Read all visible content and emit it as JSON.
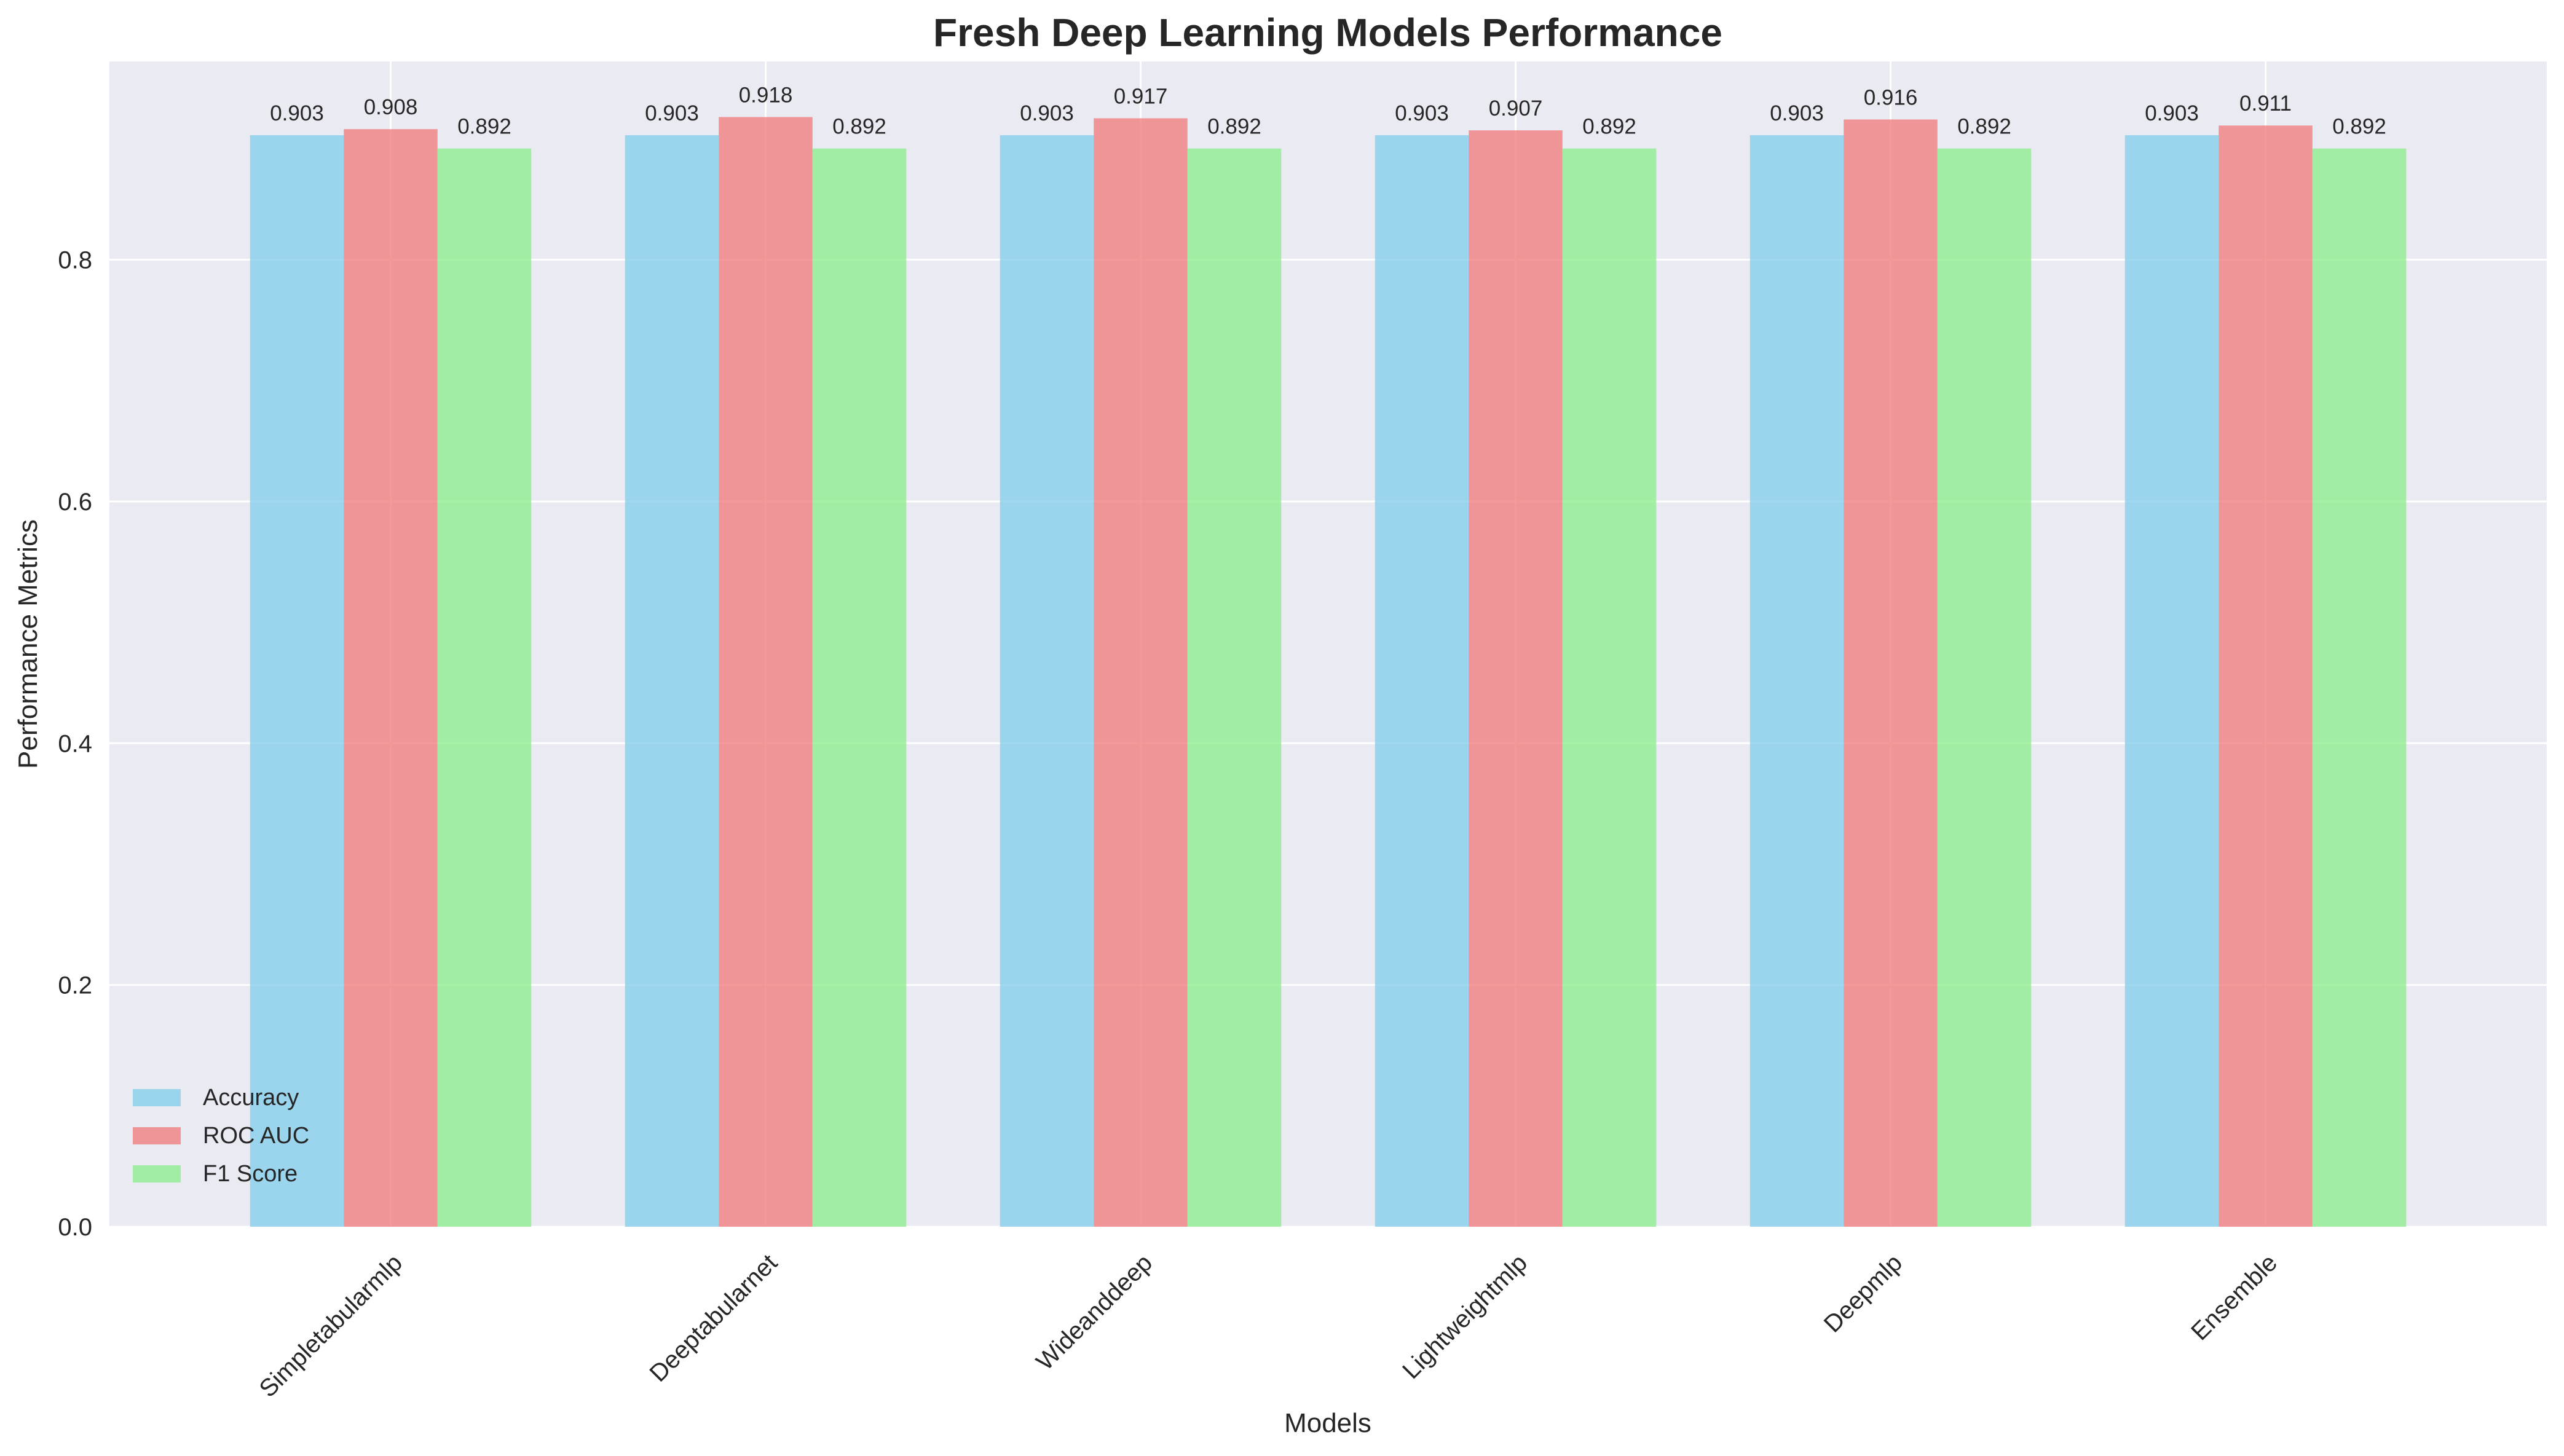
{
  "chart_data": {
    "type": "bar",
    "title": "Fresh Deep Learning Models Performance",
    "xlabel": "Models",
    "ylabel": "Performance Metrics",
    "categories": [
      "Simpletabularmlp",
      "Deeptabularnet",
      "Wideanddeep",
      "Lightweightmlp",
      "Deepmlp",
      "Ensemble"
    ],
    "series": [
      {
        "name": "Accuracy",
        "color": "#87CEEB",
        "values": [
          0.903,
          0.903,
          0.903,
          0.903,
          0.903,
          0.903
        ]
      },
      {
        "name": "ROC AUC",
        "color": "#F08080",
        "values": [
          0.908,
          0.918,
          0.917,
          0.907,
          0.916,
          0.911
        ]
      },
      {
        "name": "F1 Score",
        "color": "#90EE90",
        "values": [
          0.892,
          0.892,
          0.892,
          0.892,
          0.892,
          0.892
        ]
      }
    ],
    "ylim": [
      0,
      0.964
    ],
    "yticks": [
      0.0,
      0.2,
      0.4,
      0.6,
      0.8
    ],
    "ytick_labels": [
      "0.0",
      "0.2",
      "0.4",
      "0.6",
      "0.8"
    ],
    "grid": true,
    "legend_position": "lower-left",
    "plot_background": "#EAEAF2"
  }
}
